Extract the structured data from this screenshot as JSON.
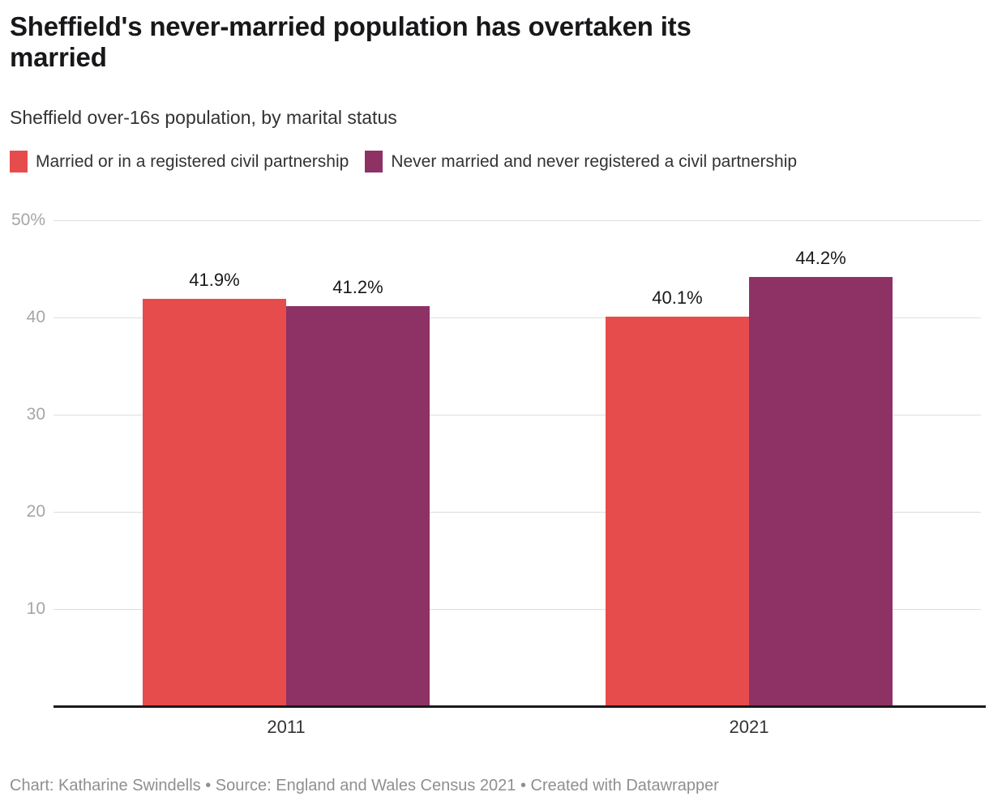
{
  "header": {
    "title": "Sheffield's never-married population has overtaken its married",
    "title_lines": [
      "Sheffield's never-married population has overtaken its",
      "married"
    ],
    "subtitle": "Sheffield over-16s population, by marital status"
  },
  "chart_data": {
    "type": "bar",
    "title": "Sheffield's never-married population has overtaken its married",
    "subtitle": "Sheffield over-16s population, by marital status",
    "categories": [
      "2011",
      "2021"
    ],
    "series": [
      {
        "key": "married",
        "name": "Married or in a registered civil partnership",
        "color": "#E64C4B",
        "values": [
          41.9,
          40.1
        ]
      },
      {
        "key": "never-married",
        "name": "Never married and never registered a civil partnership",
        "color": "#8E3266",
        "values": [
          41.2,
          44.2
        ]
      }
    ],
    "value_labels": {
      "married": [
        "41.9%",
        "40.1%"
      ],
      "never-married": [
        "41.2%",
        "44.2%"
      ]
    },
    "y_ticks": [
      "50%",
      "40",
      "30",
      "20",
      "10"
    ],
    "y_tick_values": [
      50,
      40,
      30,
      20,
      10
    ],
    "ylim": [
      0,
      50
    ],
    "unit_suffix": "%",
    "grid": true,
    "legend_position": "top",
    "axis_label_color": "#a6a6a6",
    "value_label_color": "#18181b"
  },
  "footer": {
    "credit": "Chart: Katharine Swindells • Source: England and Wales Census 2021 • Created with Datawrapper"
  }
}
